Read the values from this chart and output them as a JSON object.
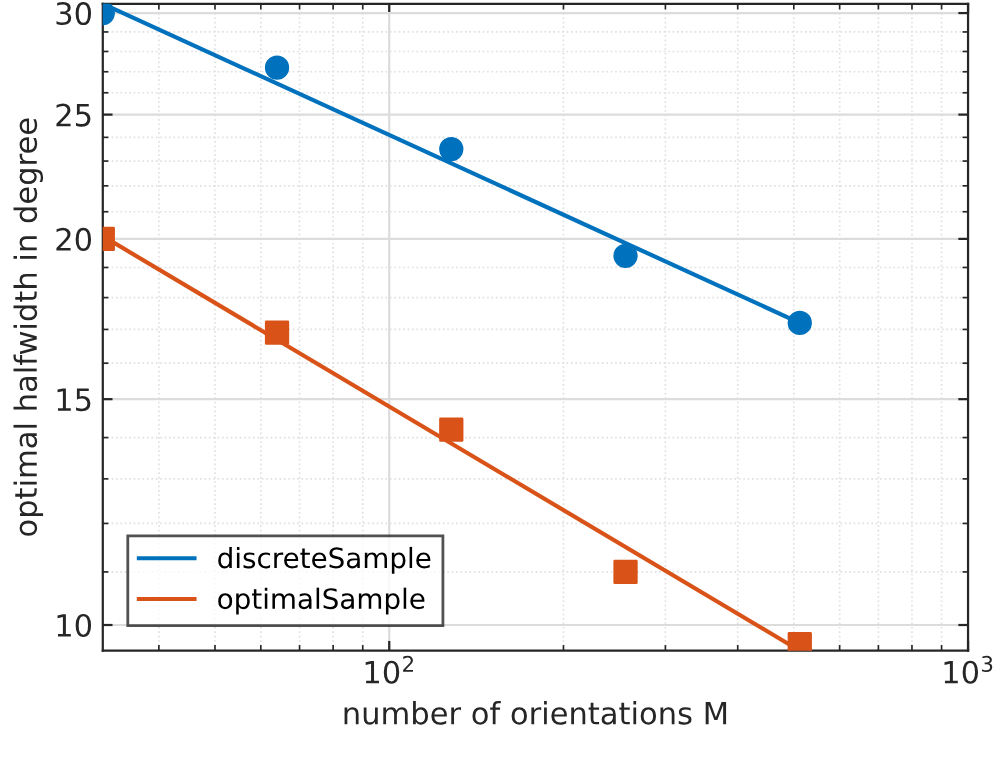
{
  "chart_data": {
    "type": "scatter",
    "xlabel": "number of orientations M",
    "ylabel": "optimal halfwidth in degree",
    "log": "xy",
    "grid": true,
    "legend": "bottom left",
    "xlim": [
      32,
      1000
    ],
    "xticks": [
      {
        "value": 100,
        "label": "10$^{2}$"
      },
      {
        "value": 1000,
        "label": "10$^{3}$"
      }
    ],
    "ylim": [
      9.55,
      30.5
    ],
    "yticks": [
      10,
      15,
      20,
      25,
      30
    ],
    "series": [
      {
        "color": "#0072bd",
        "marker": "circle",
        "x": [
          32,
          64,
          128,
          256,
          512
        ],
        "values": [
          30,
          27.2,
          23.5,
          19.4,
          17.2
        ]
      },
      {
        "color": "#d95319",
        "marker": "square",
        "x": [
          32,
          64,
          128,
          256,
          512
        ],
        "values": [
          20,
          16.9,
          14.2,
          11.0,
          9.66
        ]
      },
      {
        "type": "line",
        "name": "discreteSample",
        "color": "#0072bd",
        "marker": "none",
        "x": [
          32,
          512
        ],
        "values": [
          30.5,
          17.2
        ]
      },
      {
        "type": "line",
        "name": "optimalSample",
        "color": "#d95319",
        "marker": "none",
        "x": [
          32,
          512
        ],
        "values": [
          20.1,
          9.55
        ]
      }
    ]
  }
}
